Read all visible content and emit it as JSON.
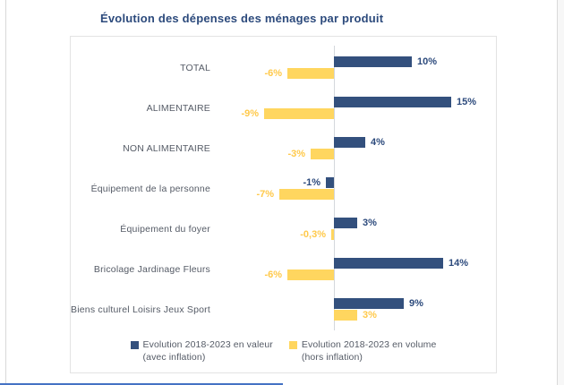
{
  "page": {
    "accent_line_color": "#4472c4",
    "frame_line_color": "#d9d9d9"
  },
  "chart_data": {
    "type": "bar",
    "orientation": "horizontal",
    "title": "Évolution des dépenses des ménages par produit",
    "categories": [
      "TOTAL",
      "ALIMENTAIRE",
      "NON ALIMENTAIRE",
      "Équipement de la personne",
      "Équipement du foyer",
      "Bricolage Jardinage Fleurs",
      "Biens culturel Loisirs Jeux Sport"
    ],
    "series": [
      {
        "name": "Evolution 2018-2023 en valeur (avec inflation)",
        "legend_lines": [
          "Evolution 2018-2023 en valeur",
          "(avec inflation)"
        ],
        "color": "#33507d",
        "label_color": "#2c4a7c",
        "values": [
          10,
          15,
          4,
          -1,
          3,
          14,
          9
        ],
        "labels": [
          "10%",
          "15%",
          "4%",
          "-1%",
          "3%",
          "14%",
          "9%"
        ]
      },
      {
        "name": "Evolution 2018-2023 en volume (hors inflation)",
        "legend_lines": [
          "Evolution 2018-2023 en volume",
          "(hors inflation)"
        ],
        "color": "#ffd65f",
        "label_color": "#ffc94a",
        "values": [
          -6,
          -9,
          -3,
          -7,
          -0.3,
          -6,
          3
        ],
        "labels": [
          "-6%",
          "-9%",
          "-3%",
          "-7%",
          "-0,3%",
          "-6%",
          "3%"
        ]
      }
    ],
    "xlim": [
      -10,
      16
    ],
    "value_suffix": "%",
    "data_labels": true,
    "gridlines": false,
    "zero_axis_line": true,
    "legend_position": "bottom"
  }
}
